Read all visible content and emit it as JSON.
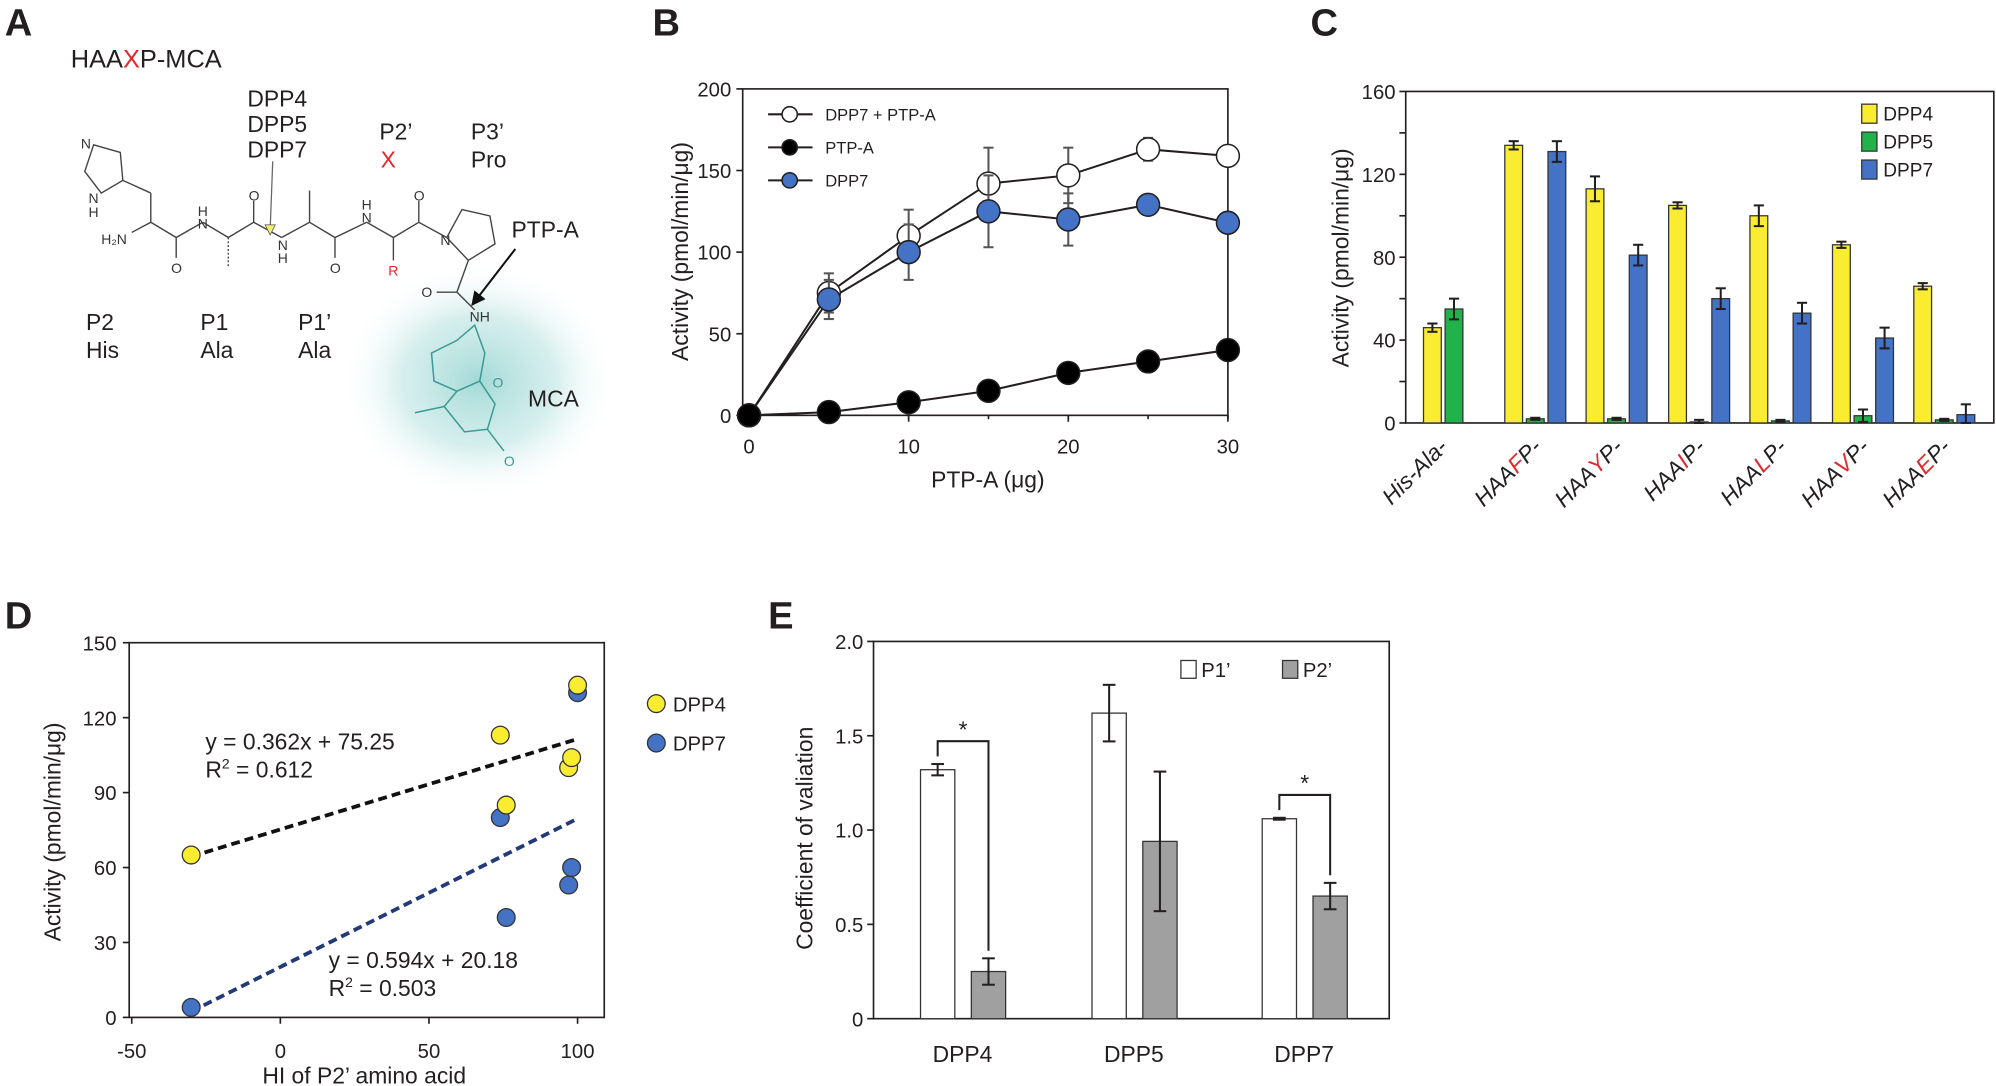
{
  "panels": {
    "a": "A",
    "b": "B",
    "c": "C",
    "d": "D",
    "e": "E"
  },
  "panel_a": {
    "title_pre": "HAA",
    "title_x": "X",
    "title_post": "P-MCA",
    "enzymes": [
      "DPP4",
      "DPP5",
      "DPP7"
    ],
    "p2prime": "P2’",
    "x": "X",
    "p3prime": "P3’",
    "pro": "Pro",
    "ptpa": "PTP-A",
    "mca": "MCA",
    "sites": [
      {
        "pos": "P2",
        "res": "His"
      },
      {
        "pos": "P1",
        "res": "Ala"
      },
      {
        "pos": "P1’",
        "res": "Ala"
      }
    ],
    "atoms": {
      "n": "N",
      "nh": "N",
      "h": "H",
      "h2n": "H₂N",
      "o": "O",
      "r": "R",
      "nh2": "NH"
    },
    "colors": {
      "red": "#e8262a",
      "teal": "#3e9a95",
      "arrow_yellow": "#f4ef6a"
    }
  },
  "chart_data": [
    {
      "id": "B",
      "type": "line",
      "xlabel": "PTP-A (μg)",
      "ylabel": "Activity  (pmol/min/μg)",
      "xlim": [
        0,
        30
      ],
      "ylim": [
        0,
        200
      ],
      "xticks": [
        0,
        10,
        20,
        30
      ],
      "yticks": [
        0,
        50,
        100,
        150,
        200
      ],
      "legend": "top-left",
      "x": [
        0,
        5,
        10,
        15,
        20,
        25,
        30
      ],
      "series": [
        {
          "name": "DPP7 + PTP-A",
          "marker": "open-circle",
          "color": "#ffffff",
          "values": [
            0,
            75,
            110,
            142,
            147,
            163,
            159
          ],
          "errors": [
            0,
            12,
            16,
            22,
            17,
            7,
            0
          ]
        },
        {
          "name": "PTP-A",
          "marker": "filled-circle",
          "color": "#000000",
          "values": [
            0,
            2,
            8,
            15,
            26,
            33,
            40
          ],
          "errors": [
            0,
            0,
            0,
            0,
            0,
            0,
            0
          ]
        },
        {
          "name": "DPP7",
          "marker": "blue-circle",
          "color": "#4472c4",
          "values": [
            0,
            71,
            100,
            125,
            120,
            129,
            118
          ],
          "errors": [
            0,
            12,
            17,
            22,
            16,
            0,
            0
          ]
        }
      ]
    },
    {
      "id": "C",
      "type": "bar",
      "ylabel": "Activity (pmol/min/μg)",
      "ylim": [
        0,
        160
      ],
      "yticks": [
        0,
        40,
        80,
        120,
        160
      ],
      "legend": "top-right",
      "categories": [
        {
          "pre": "His-Ala-",
          "x": "",
          "post": ""
        },
        {
          "pre": "HAA",
          "x": "F",
          "post": "P-"
        },
        {
          "pre": "HAA",
          "x": "Y",
          "post": "P-"
        },
        {
          "pre": "HAA",
          "x": "I",
          "post": "P-"
        },
        {
          "pre": "HAA",
          "x": "L",
          "post": "P-"
        },
        {
          "pre": "HAA",
          "x": "V",
          "post": "P-"
        },
        {
          "pre": "HAA",
          "x": "E",
          "post": "P-"
        }
      ],
      "series": [
        {
          "name": "DPP4",
          "color": "#f9ec31",
          "values": [
            46,
            134,
            113,
            105,
            100,
            86,
            66
          ],
          "errors": [
            2,
            2,
            6,
            1.5,
            5,
            1.5,
            1.5
          ]
        },
        {
          "name": "DPP5",
          "color": "#22b24c",
          "values": [
            55,
            2,
            2,
            0.5,
            1,
            3.5,
            1.5
          ],
          "errors": [
            5,
            0.5,
            0.5,
            1,
            0.5,
            3,
            0.5
          ]
        },
        {
          "name": "DPP7",
          "color": "#4472c4",
          "values": [
            null,
            131,
            81,
            60,
            53,
            41,
            4
          ],
          "errors": [
            null,
            5,
            5,
            5,
            5,
            5,
            5
          ]
        }
      ]
    },
    {
      "id": "D",
      "type": "scatter",
      "xlabel": "HI of P2’ amino acid",
      "ylabel": "Activity  (pmol/min/μg)",
      "xlim": [
        -50,
        110
      ],
      "ylim": [
        0,
        150
      ],
      "xticks": [
        -50,
        0,
        50,
        100
      ],
      "yticks": [
        0,
        30,
        60,
        90,
        120,
        150
      ],
      "legend": "right",
      "series": [
        {
          "name": "DPP4",
          "color": "#f9ec31",
          "line_color": "#111111",
          "x": [
            -30,
            74,
            76,
            97,
            98,
            100
          ],
          "y": [
            65,
            113,
            85,
            100,
            104,
            133
          ],
          "fit": {
            "slope": 0.362,
            "intercept": 75.25
          },
          "equation": "y = 0.362x + 75.25",
          "r2_label": "R",
          "r2_value": " = 0.612"
        },
        {
          "name": "DPP7",
          "color": "#4472c4",
          "line_color": "#233a78",
          "x": [
            -30,
            74,
            76,
            97,
            98,
            100
          ],
          "y": [
            4,
            80,
            40,
            53,
            60,
            130
          ],
          "fit": {
            "slope": 0.594,
            "intercept": 20.18
          },
          "equation": "y = 0.594x + 20.18",
          "r2_label": "R",
          "r2_value": " = 0.503"
        }
      ]
    },
    {
      "id": "E",
      "type": "bar",
      "ylabel": "Coefficient of valiation",
      "ylim": [
        0,
        2.0
      ],
      "yticks": [
        "0",
        "0.5",
        "1.0",
        "1.5",
        "2.0"
      ],
      "legend": "top-right",
      "categories": [
        "DPP4",
        "DPP5",
        "DPP7"
      ],
      "series": [
        {
          "name": "P1’",
          "color": "#ffffff",
          "values": [
            1.32,
            1.62,
            1.06
          ],
          "errors": [
            0.03,
            0.15,
            0.005
          ]
        },
        {
          "name": "P2’",
          "color": "#a0a0a0",
          "values": [
            0.25,
            0.94,
            0.65
          ],
          "errors": [
            0.07,
            0.37,
            0.07
          ]
        }
      ],
      "significance": [
        {
          "category": "DPP4",
          "label": "*"
        },
        {
          "category": "DPP7",
          "label": "*"
        }
      ]
    }
  ]
}
